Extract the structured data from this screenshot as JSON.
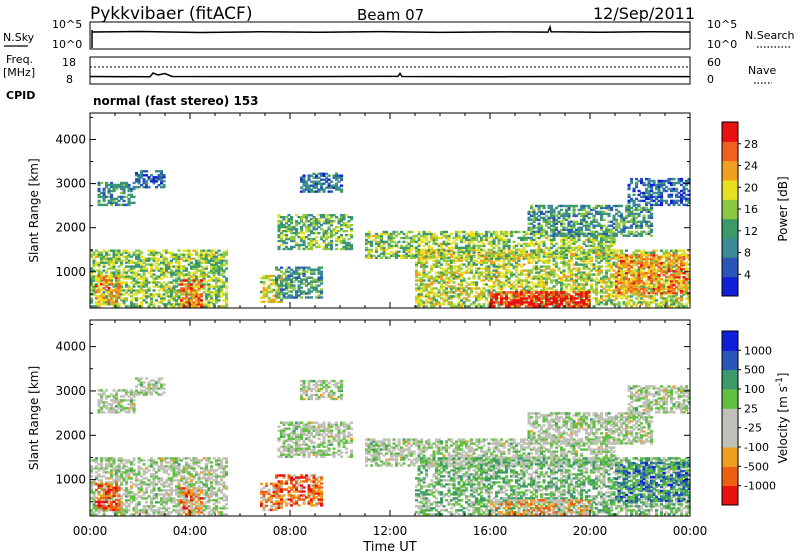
{
  "header": {
    "title": "Pykkvibaer (fitACF)",
    "beam": "Beam 07",
    "date": "12/Sep/2011",
    "cpid_line": "normal (fast stereo) 153"
  },
  "strips": {
    "nsky": {
      "left_label": "N.Sky",
      "right_label": "N.Search",
      "left_ticks": [
        "10^5",
        "10^0"
      ],
      "right_ticks": [
        "10^5",
        "10^0"
      ]
    },
    "freq": {
      "left_label_1": "Freq.",
      "left_label_2": "[MHz]",
      "right_label": "Nave",
      "left_ticks": [
        "18",
        "8"
      ],
      "right_ticks": [
        "60",
        "0"
      ]
    },
    "cpid_label": "CPID"
  },
  "colors": {
    "power": [
      "#1020d8",
      "#2a56b8",
      "#3a8a98",
      "#3c9a6a",
      "#8cc840",
      "#e6e020",
      "#f0a020",
      "#f06020",
      "#e81010"
    ],
    "velocity": [
      "#e81010",
      "#ee6010",
      "#f0a020",
      "#c0c0b8",
      "#c0c0b8",
      "#60c040",
      "#3c9a6a",
      "#2a56b8",
      "#1020d8"
    ]
  },
  "chart_data": [
    {
      "type": "heatmap",
      "title": "",
      "xlabel": "Time UT",
      "ylabel": "Slant Range [km]",
      "x_ticks": [
        "00:00",
        "04:00",
        "08:00",
        "12:00",
        "16:00",
        "20:00",
        "00:00"
      ],
      "y_ticks": [
        1000,
        2000,
        3000,
        4000
      ],
      "xlim": [
        0,
        24
      ],
      "ylim": [
        180,
        4600
      ],
      "colorbar": {
        "label": "Power [dB]",
        "ticks": [
          "4",
          "8",
          "12",
          "16",
          "20",
          "24",
          "28"
        ]
      },
      "echo_regions": [
        {
          "t0": 0.3,
          "t1": 1.8,
          "r0": 2500,
          "r1": 3000,
          "level": 0.3
        },
        {
          "t0": 1.8,
          "t1": 3.0,
          "r0": 2900,
          "r1": 3300,
          "level": 0.2
        },
        {
          "t0": 0.0,
          "t1": 5.4,
          "r0": 200,
          "r1": 1500,
          "level": 0.5
        },
        {
          "t0": 0.2,
          "t1": 1.2,
          "r0": 300,
          "r1": 900,
          "level": 0.75
        },
        {
          "t0": 3.6,
          "t1": 4.4,
          "r0": 200,
          "r1": 800,
          "level": 0.8
        },
        {
          "t0": 6.8,
          "t1": 7.6,
          "r0": 300,
          "r1": 900,
          "level": 0.6
        },
        {
          "t0": 7.5,
          "t1": 10.4,
          "r0": 1500,
          "r1": 2300,
          "level": 0.45
        },
        {
          "t0": 8.4,
          "t1": 10.0,
          "r0": 2800,
          "r1": 3250,
          "level": 0.25
        },
        {
          "t0": 7.4,
          "t1": 9.2,
          "r0": 400,
          "r1": 1100,
          "level": 0.35
        },
        {
          "t0": 11.0,
          "t1": 21.0,
          "r0": 1300,
          "r1": 1900,
          "level": 0.5
        },
        {
          "t0": 13.0,
          "t1": 24.0,
          "r0": 200,
          "r1": 1500,
          "level": 0.55
        },
        {
          "t0": 16.0,
          "t1": 20.0,
          "r0": 200,
          "r1": 550,
          "level": 0.95
        },
        {
          "t0": 17.5,
          "t1": 22.5,
          "r0": 1800,
          "r1": 2500,
          "level": 0.35
        },
        {
          "t0": 21.5,
          "t1": 24.0,
          "r0": 2500,
          "r1": 3100,
          "level": 0.2
        },
        {
          "t0": 21.0,
          "t1": 24.0,
          "r0": 500,
          "r1": 1400,
          "level": 0.75
        }
      ]
    },
    {
      "type": "heatmap",
      "title": "",
      "xlabel": "Time UT",
      "ylabel": "Slant Range [km]",
      "x_ticks": [
        "00:00",
        "04:00",
        "08:00",
        "12:00",
        "16:00",
        "20:00",
        "00:00"
      ],
      "y_ticks": [
        1000,
        2000,
        3000,
        4000
      ],
      "xlim": [
        0,
        24
      ],
      "ylim": [
        180,
        4600
      ],
      "colorbar": {
        "label": "Velocity [m s^-1]",
        "ticks": [
          "1000",
          "500",
          "100",
          "25",
          "-25",
          "-100",
          "-500",
          "-1000"
        ]
      },
      "echo_regions": [
        {
          "t0": 0.3,
          "t1": 1.8,
          "r0": 2500,
          "r1": 3000,
          "level": 0.5
        },
        {
          "t0": 1.8,
          "t1": 3.0,
          "r0": 2900,
          "r1": 3300,
          "level": 0.5
        },
        {
          "t0": 0.0,
          "t1": 5.4,
          "r0": 200,
          "r1": 1500,
          "level": 0.5
        },
        {
          "t0": 0.2,
          "t1": 1.2,
          "r0": 300,
          "r1": 900,
          "level": 0.15
        },
        {
          "t0": 3.6,
          "t1": 4.4,
          "r0": 200,
          "r1": 800,
          "level": 0.25
        },
        {
          "t0": 6.8,
          "t1": 7.6,
          "r0": 300,
          "r1": 900,
          "level": 0.25
        },
        {
          "t0": 7.5,
          "t1": 10.4,
          "r0": 1500,
          "r1": 2300,
          "level": 0.5
        },
        {
          "t0": 8.4,
          "t1": 10.0,
          "r0": 2800,
          "r1": 3250,
          "level": 0.5
        },
        {
          "t0": 7.4,
          "t1": 9.2,
          "r0": 400,
          "r1": 1100,
          "level": 0.2
        },
        {
          "t0": 11.0,
          "t1": 21.0,
          "r0": 1300,
          "r1": 1900,
          "level": 0.5
        },
        {
          "t0": 13.0,
          "t1": 24.0,
          "r0": 200,
          "r1": 1500,
          "level": 0.6
        },
        {
          "t0": 16.0,
          "t1": 20.0,
          "r0": 200,
          "r1": 550,
          "level": 0.3
        },
        {
          "t0": 17.5,
          "t1": 22.5,
          "r0": 1800,
          "r1": 2500,
          "level": 0.5
        },
        {
          "t0": 21.5,
          "t1": 24.0,
          "r0": 2500,
          "r1": 3100,
          "level": 0.5
        },
        {
          "t0": 21.0,
          "t1": 24.0,
          "r0": 500,
          "r1": 1400,
          "level": 0.75
        }
      ]
    }
  ]
}
